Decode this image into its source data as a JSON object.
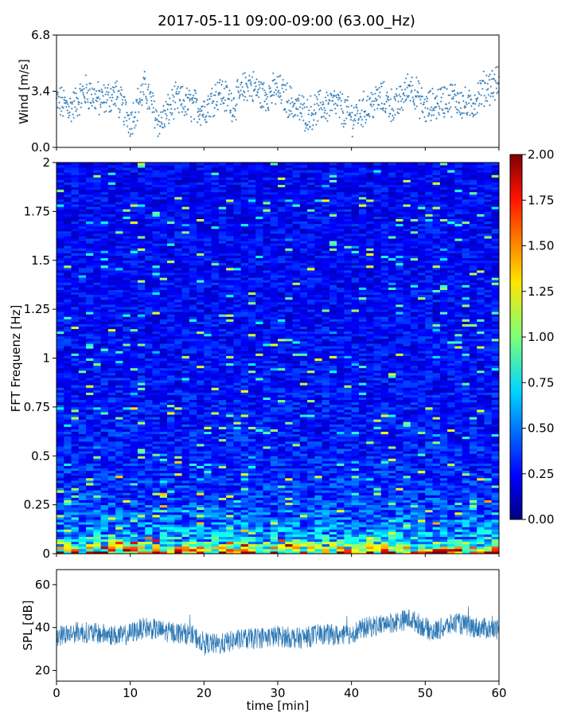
{
  "title": "2017-05-11 09:00-09:00 (63.00_Hz)",
  "chart_data": [
    {
      "type": "scatter",
      "ylabel": "Wind [m/s]",
      "xlim": [
        0,
        60
      ],
      "ylim": [
        0.0,
        6.8
      ],
      "yticks": [
        "0.0",
        "3.4",
        "6.8"
      ],
      "color": "#2a77b4",
      "series_trend": {
        "x": [
          0,
          2,
          4,
          6,
          8,
          10,
          12,
          14,
          16,
          18,
          20,
          22,
          24,
          26,
          28,
          30,
          32,
          34,
          36,
          38,
          40,
          42,
          44,
          46,
          48,
          50,
          52,
          54,
          56,
          58,
          60
        ],
        "y": [
          2.8,
          2.4,
          3.4,
          2.8,
          3.2,
          1.6,
          3.6,
          1.4,
          2.8,
          2.6,
          2.3,
          3.4,
          2.6,
          3.9,
          3.1,
          3.5,
          2.6,
          2.0,
          2.5,
          2.6,
          1.8,
          2.4,
          3.0,
          2.4,
          3.8,
          2.3,
          2.8,
          3.0,
          2.4,
          3.6,
          3.9
        ]
      },
      "spread": 0.9
    },
    {
      "type": "heatmap",
      "ylabel": "FFT Frequenz [Hz]",
      "xlim": [
        0,
        60
      ],
      "ylim": [
        0,
        2
      ],
      "yticks": [
        "0",
        "0.25",
        "0.5",
        "0.75",
        "1",
        "1.25",
        "1.5",
        "1.75",
        "2"
      ],
      "colormap": "jet",
      "colorbar": {
        "min": 0.0,
        "max": 2.0,
        "ticks": [
          "0.00",
          "0.25",
          "0.50",
          "0.75",
          "1.00",
          "1.25",
          "1.50",
          "1.75",
          "2.00"
        ]
      },
      "level_profile": {
        "freq_hz": [
          0.0,
          0.02,
          0.05,
          0.1,
          0.2,
          0.3,
          0.5,
          1.0,
          1.5,
          2.0
        ],
        "typical_value": [
          1.6,
          1.2,
          0.8,
          0.55,
          0.42,
          0.35,
          0.3,
          0.26,
          0.25,
          0.24
        ]
      }
    },
    {
      "type": "line",
      "xlabel": "time [min]",
      "ylabel": "SPL [dB]",
      "xlim": [
        0,
        60
      ],
      "ylim": [
        15,
        67
      ],
      "xticks": [
        "0",
        "10",
        "20",
        "30",
        "40",
        "50",
        "60"
      ],
      "yticks": [
        "20",
        "40",
        "60"
      ],
      "color": "#2a77b4",
      "series_trend": {
        "x": [
          0,
          3,
          6,
          9,
          12,
          15,
          18,
          20,
          22,
          24,
          27,
          30,
          33,
          36,
          39,
          42,
          45,
          48,
          51,
          54,
          57,
          60
        ],
        "y": [
          36,
          38,
          37,
          36,
          40,
          38,
          37,
          33,
          32,
          34,
          35,
          36,
          35,
          37,
          36,
          40,
          42,
          44,
          38,
          42,
          40,
          39
        ]
      },
      "spread": 5
    }
  ]
}
